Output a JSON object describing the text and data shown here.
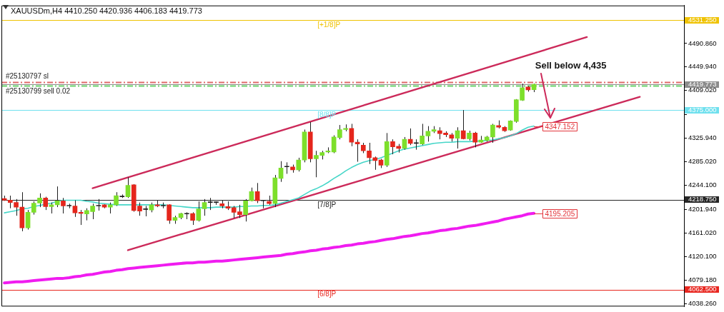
{
  "chart_data": {
    "type": "candlestick",
    "title": "XAUUSDm,H4 4410.250 4420.936 4406.183 4419.773",
    "categories": [
      null,
      null,
      null,
      null,
      null,
      null,
      null,
      null,
      null,
      null,
      null,
      null,
      null,
      null,
      null,
      null,
      null,
      null,
      null,
      null,
      null,
      null,
      null,
      null,
      null,
      null,
      null,
      null,
      null,
      null,
      null,
      null,
      null,
      null,
      null,
      null,
      null,
      null,
      null,
      null,
      null,
      null,
      null,
      null,
      null,
      null,
      null,
      null,
      null,
      null,
      null,
      null,
      null,
      null,
      null,
      null,
      null,
      null,
      null,
      null,
      null,
      null,
      null,
      null,
      null,
      null,
      null,
      null,
      null,
      null,
      null,
      null,
      null,
      null,
      null,
      null,
      null,
      null,
      null,
      null,
      null,
      null,
      null,
      null,
      null,
      null,
      null,
      null,
      null,
      null,
      null,
      null,
      null,
      null,
      null,
      null,
      null,
      null,
      null,
      null,
      null,
      null,
      null,
      null,
      null,
      null,
      null,
      null,
      null,
      null,
      null,
      null,
      null,
      null,
      null,
      null
    ],
    "ohlc": [
      [
        4221,
        4226,
        4217,
        4218
      ],
      [
        4218,
        4226,
        4204,
        4214
      ],
      [
        4214,
        4220,
        4191,
        4206
      ],
      [
        4206,
        4232,
        4164,
        4170
      ],
      [
        4170,
        4201,
        4167,
        4197
      ],
      [
        4197,
        4216,
        4193,
        4213
      ],
      [
        4213,
        4230,
        4206,
        4222
      ],
      [
        4222,
        4224,
        4201,
        4207
      ],
      [
        4207,
        4214,
        4195,
        4210
      ],
      [
        4210,
        4242,
        4206,
        4217
      ],
      [
        4217,
        4222,
        4195,
        4208
      ],
      [
        4208,
        4212,
        4204,
        4208
      ],
      [
        4208,
        4218,
        4189,
        4196
      ],
      [
        4197,
        4201,
        4175,
        4195
      ],
      [
        4194,
        4204,
        4183,
        4200
      ],
      [
        4198,
        4212,
        4185,
        4208
      ],
      [
        4208,
        4220,
        4200,
        4208
      ],
      [
        4210,
        4211,
        4204,
        4206
      ],
      [
        4206,
        4214,
        4195,
        4210
      ],
      [
        4210,
        4232,
        4208,
        4226
      ],
      [
        4224,
        4228,
        4222,
        4224
      ],
      [
        4224,
        4258,
        4222,
        4244
      ],
      [
        4245,
        4246,
        4198,
        4200
      ],
      [
        4208,
        4214,
        4191,
        4199
      ],
      [
        4202,
        4208,
        4190,
        4202
      ],
      [
        4201,
        4214,
        4197,
        4210
      ],
      [
        4210,
        4218,
        4206,
        4208
      ],
      [
        4208,
        4214,
        4204,
        4208
      ],
      [
        4210,
        4211,
        4177,
        4183
      ],
      [
        4183,
        4191,
        4177,
        4188
      ],
      [
        4188,
        4196,
        4185,
        4195
      ],
      [
        4194,
        4197,
        4185,
        4194
      ],
      [
        4195,
        4197,
        4175,
        4183
      ],
      [
        4183,
        4216,
        4181,
        4203
      ],
      [
        4203,
        4220,
        4191,
        4214
      ],
      [
        4214,
        4222,
        4201,
        4214
      ],
      [
        4214,
        4216,
        4210,
        4214
      ],
      [
        4212,
        4218,
        4204,
        4208
      ],
      [
        4207,
        4216,
        4201,
        4204
      ],
      [
        4205,
        4208,
        4187,
        4197
      ],
      [
        4198,
        4210,
        4187,
        4193
      ],
      [
        4193,
        4220,
        4181,
        4217
      ],
      [
        4217,
        4240,
        4216,
        4233
      ],
      [
        4233,
        4248,
        4213,
        4217
      ],
      [
        4217,
        4218,
        4204,
        4217
      ],
      [
        4216,
        4226,
        4210,
        4212
      ],
      [
        4212,
        4262,
        4206,
        4257
      ],
      [
        4256,
        4286,
        4250,
        4274
      ],
      [
        4276,
        4284,
        4264,
        4276
      ],
      [
        4276,
        4280,
        4266,
        4271
      ],
      [
        4271,
        4292,
        4268,
        4288
      ],
      [
        4288,
        4341,
        4284,
        4337
      ],
      [
        4337,
        4354,
        4284,
        4290
      ],
      [
        4290,
        4304,
        4258,
        4296
      ],
      [
        4296,
        4304,
        4289,
        4301
      ],
      [
        4302,
        4310,
        4300,
        4304
      ],
      [
        4302,
        4331,
        4300,
        4328
      ],
      [
        4327,
        4349,
        4324,
        4341
      ],
      [
        4341,
        4350,
        4338,
        4343
      ],
      [
        4343,
        4351,
        4312,
        4319
      ],
      [
        4319,
        4324,
        4285,
        4316
      ],
      [
        4314,
        4318,
        4300,
        4304
      ],
      [
        4304,
        4318,
        4281,
        4292
      ],
      [
        4292,
        4294,
        4271,
        4287
      ],
      [
        4288,
        4290,
        4274,
        4279
      ],
      [
        4279,
        4335,
        4276,
        4320
      ],
      [
        4320,
        4324,
        4298,
        4311
      ],
      [
        4312,
        4316,
        4301,
        4308
      ],
      [
        4308,
        4328,
        4306,
        4324
      ],
      [
        4324,
        4343,
        4314,
        4317
      ],
      [
        4317,
        4324,
        4306,
        4317
      ],
      [
        4316,
        4351,
        4314,
        4330
      ],
      [
        4330,
        4347,
        4320,
        4338
      ],
      [
        4338,
        4347,
        4335,
        4341
      ],
      [
        4339,
        4345,
        4324,
        4334
      ],
      [
        4335,
        4338,
        4328,
        4332
      ],
      [
        4332,
        4335,
        4320,
        4326
      ],
      [
        4326,
        4345,
        4308,
        4339
      ],
      [
        4339,
        4375,
        4324,
        4325
      ],
      [
        4325,
        4339,
        4322,
        4335
      ],
      [
        4335,
        4337,
        4310,
        4319
      ],
      [
        4319,
        4330,
        4318,
        4323
      ],
      [
        4322,
        4330,
        4320,
        4328
      ],
      [
        4328,
        4351,
        4318,
        4349
      ],
      [
        4348,
        4357,
        4343,
        4345
      ],
      [
        4345,
        4347,
        4337,
        4339
      ],
      [
        4340,
        4357,
        4339,
        4356
      ],
      [
        4355,
        4394,
        4353,
        4393
      ],
      [
        4392,
        4421,
        4391,
        4414
      ],
      [
        4415,
        4417,
        4407,
        4410
      ],
      [
        4410.25,
        4420.936,
        4406.183,
        4419.773
      ],
      null,
      null,
      null,
      null,
      null,
      null,
      null,
      null,
      null,
      null,
      null,
      null,
      null,
      null,
      null,
      null,
      null,
      null,
      null,
      null,
      null,
      null,
      null,
      null,
      null
    ],
    "colors": [
      "#e5261c",
      "#e5261c",
      "#e5261c",
      "#e5261c",
      "#7ddf2b",
      "#7ddf2b",
      "#7ddf2b",
      "#e5261c",
      "#7ddf2b",
      "#7ddf2b",
      "#e5261c",
      "#1f1f1f",
      "#e5261c",
      "#e5261c",
      "#7ddf2b",
      "#7ddf2b",
      "#1f1f1f",
      "#e5261c",
      "#7ddf2b",
      "#7ddf2b",
      "#1f1f1f",
      "#7ddf2b",
      "#e5261c",
      "#e5261c",
      "#1f1f1f",
      "#7ddf2b",
      "#e5261c",
      "#1f1f1f",
      "#e5261c",
      "#7ddf2b",
      "#7ddf2b",
      "#1f1f1f",
      "#e5261c",
      "#7ddf2b",
      "#7ddf2b",
      "#1f1f1f",
      "#1f1f1f",
      "#e5261c",
      "#e5261c",
      "#e5261c",
      "#e5261c",
      "#7ddf2b",
      "#7ddf2b",
      "#e5261c",
      "#1f1f1f",
      "#e5261c",
      "#7ddf2b",
      "#7ddf2b",
      "#1f1f1f",
      "#e5261c",
      "#7ddf2b",
      "#7ddf2b",
      "#e5261c",
      "#7ddf2b",
      "#7ddf2b",
      "#7ddf2b",
      "#7ddf2b",
      "#7ddf2b",
      "#7ddf2b",
      "#e5261c",
      "#e5261c",
      "#e5261c",
      "#e5261c",
      "#e5261c",
      "#e5261c",
      "#7ddf2b",
      "#e5261c",
      "#e5261c",
      "#7ddf2b",
      "#e5261c",
      "#1f1f1f",
      "#7ddf2b",
      "#7ddf2b",
      "#7ddf2b",
      "#e5261c",
      "#e5261c",
      "#e5261c",
      "#7ddf2b",
      "#e5261c",
      "#7ddf2b",
      "#e5261c",
      "#7ddf2b",
      "#7ddf2b",
      "#7ddf2b",
      "#e5261c",
      "#e5261c",
      "#7ddf2b",
      "#7ddf2b",
      "#7ddf2b",
      "#e5261c",
      "#7ddf2b",
      null,
      null,
      null,
      null,
      null,
      null,
      null,
      null,
      null,
      null,
      null,
      null,
      null,
      null,
      null,
      null,
      null,
      null,
      null,
      null,
      null,
      null,
      null,
      null,
      null
    ],
    "ylim": [
      4033,
      4557
    ],
    "yticks": [
      {
        "value": 4531.25,
        "label": "4531.250"
      },
      {
        "value": 4490.86,
        "label": "4490.860"
      },
      {
        "value": 4449.94,
        "label": "4449.940"
      },
      {
        "value": 4419.773,
        "label": "4419.773"
      },
      {
        "value": 4409.02,
        "label": "4409.020"
      },
      {
        "value": 4375,
        "label": "4375.000"
      },
      {
        "value": 4366.86,
        "label": null
      },
      {
        "value": 4325.94,
        "label": "4325.940"
      },
      {
        "value": 4285.02,
        "label": "4285.020"
      },
      {
        "value": 4244.1,
        "label": "4244.100"
      },
      {
        "value": 4218.75,
        "label": "4218.750"
      },
      {
        "value": 4201.94,
        "label": "4201.940"
      },
      {
        "value": 4161.02,
        "label": "4161.020"
      },
      {
        "value": 4120.1,
        "label": "4120.100"
      },
      {
        "value": 4079.18,
        "label": "4079.180"
      },
      {
        "value": 4062.5,
        "label": "4062.500"
      },
      {
        "value": 4038.26,
        "label": "4038.260"
      }
    ],
    "tick_labels": "y",
    "series": [
      {
        "type": "line",
        "color": "#45d6c8",
        "values": [
          4196,
          4198,
          4200,
          4203,
          4204,
          4207,
          4209,
          4211,
          4213,
          4216,
          4218,
          4218,
          4218,
          4218,
          4216,
          4215,
          4213,
          4212,
          4211,
          4210,
          4210,
          4210,
          4210,
          4210,
          4210,
          4210,
          4210,
          4210,
          4209,
          4208,
          4207,
          4206,
          4205,
          4205,
          4205,
          4205,
          4206,
          4206,
          4206,
          4206,
          4207,
          4207,
          4208,
          4208,
          4209,
          4209,
          4210,
          4213,
          4216,
          4219,
          4222,
          4228,
          4234,
          4238,
          4243,
          4249,
          4256,
          4262,
          4269,
          4275,
          4280,
          4284,
          4287,
          4289,
          4292,
          4296,
          4300,
          4304,
          4307,
          4309,
          4311,
          4313,
          4315,
          4317,
          4318,
          4319,
          4319,
          4320,
          4320,
          4320,
          4321,
          4321,
          4322,
          4323,
          4325,
          4327,
          4330,
          4334,
          4340,
          4345,
          4347.152,
          null,
          null,
          null,
          null,
          null,
          null,
          null,
          null,
          null,
          null,
          null,
          null,
          null,
          null,
          null,
          null,
          null,
          null,
          null,
          null,
          null,
          null,
          null,
          null,
          null
        ],
        "value_labels": [
          null,
          null,
          null,
          null,
          null,
          null,
          null,
          null,
          null,
          null,
          null,
          null,
          null,
          null,
          null,
          null,
          null,
          null,
          null,
          null,
          null,
          null,
          null,
          null,
          null,
          null,
          null,
          null,
          null,
          null,
          null,
          null,
          null,
          null,
          null,
          null,
          null,
          null,
          null,
          null,
          null,
          null,
          null,
          null,
          null,
          null,
          null,
          null,
          null,
          null,
          null,
          null,
          null,
          null,
          null,
          null,
          null,
          null,
          null,
          null,
          null,
          null,
          null,
          null,
          null,
          null,
          null,
          null,
          null,
          null,
          null,
          null,
          null,
          null,
          null,
          null,
          null,
          null,
          null,
          null,
          null,
          null,
          null,
          null,
          null,
          null,
          null,
          null,
          null,
          null,
          "4347.152",
          null,
          null,
          null,
          null,
          null,
          null,
          null,
          null,
          null,
          null,
          null,
          null,
          null,
          null,
          null,
          null,
          null,
          null,
          null,
          null,
          null,
          null,
          null,
          null,
          null
        ]
      },
      {
        "type": "line",
        "color": "#f01cf0",
        "values": [
          4074,
          4075,
          4076,
          4076,
          4077,
          4078,
          4079,
          4080,
          4081,
          4082,
          4082,
          4083,
          4085,
          4086,
          4088,
          4089,
          4091,
          4093,
          4094,
          4096,
          4097,
          4099,
          4100,
          4101,
          4102,
          4103,
          4104,
          4105,
          4106,
          4107,
          4108,
          4109,
          4109,
          4110,
          4110,
          4111,
          4112,
          4112,
          4113,
          4114,
          4115,
          4116,
          4117,
          4118,
          4119,
          4120,
          4121,
          4122,
          4124,
          4125,
          4127,
          4128,
          4130,
          4131,
          4133,
          4134,
          4136,
          4137,
          4139,
          4140,
          4142,
          4143,
          4145,
          4146,
          4148,
          4150,
          4151,
          4153,
          4155,
          4156,
          4158,
          4160,
          4161,
          4163,
          4165,
          4166,
          4168,
          4169,
          4171,
          4173,
          4174,
          4176,
          4178,
          4180,
          4182,
          4185,
          4187,
          4189,
          4191,
          4194,
          4195.205,
          null,
          null,
          null,
          null,
          null,
          null,
          null,
          null,
          null,
          null,
          null,
          null,
          null,
          null,
          null,
          null,
          null,
          null,
          null,
          null,
          null,
          null,
          null,
          null,
          null
        ],
        "value_labels": [
          null,
          null,
          null,
          null,
          null,
          null,
          null,
          null,
          null,
          null,
          null,
          null,
          null,
          null,
          null,
          null,
          null,
          null,
          null,
          null,
          null,
          null,
          null,
          null,
          null,
          null,
          null,
          null,
          null,
          null,
          null,
          null,
          null,
          null,
          null,
          null,
          null,
          null,
          null,
          null,
          null,
          null,
          null,
          null,
          null,
          null,
          null,
          null,
          null,
          null,
          null,
          null,
          null,
          null,
          null,
          null,
          null,
          null,
          null,
          null,
          null,
          null,
          null,
          null,
          null,
          null,
          null,
          null,
          null,
          null,
          null,
          null,
          null,
          null,
          null,
          null,
          null,
          null,
          null,
          null,
          null,
          null,
          null,
          null,
          null,
          null,
          null,
          null,
          null,
          null,
          "4195.205",
          null,
          null,
          null,
          null,
          null,
          null,
          null,
          null,
          null,
          null,
          null,
          null,
          null,
          null,
          null,
          null,
          null,
          null,
          null,
          null,
          null,
          null,
          null,
          null,
          null
        ]
      },
      {
        "type": "line",
        "color": "#cc2a5a",
        "values": [
          null,
          null,
          null,
          null,
          null,
          null,
          null,
          null,
          null,
          null,
          null,
          null,
          null,
          null,
          null,
          4239,
          null,
          null,
          null,
          null,
          null,
          null,
          null,
          null,
          null,
          null,
          null,
          null,
          null,
          null,
          null,
          null,
          null,
          null,
          null,
          null,
          null,
          null,
          null,
          null,
          null,
          null,
          null,
          null,
          null,
          null,
          null,
          null,
          null,
          null,
          null,
          null,
          null,
          null,
          null,
          null,
          null,
          null,
          null,
          null,
          null,
          null,
          null,
          null,
          null,
          null,
          null,
          null,
          null,
          null,
          null,
          null,
          null,
          null,
          null,
          null,
          null,
          null,
          null,
          null,
          null,
          null,
          null,
          null,
          null,
          null,
          null,
          null,
          null,
          null,
          null,
          null,
          null,
          null,
          null,
          null,
          null,
          null,
          null,
          4502,
          null,
          null,
          null,
          null,
          null,
          null,
          null,
          null,
          null,
          null,
          null,
          null,
          null,
          null,
          null,
          null
        ]
      },
      {
        "type": "line",
        "color": "#cc2a5a",
        "values": [
          null,
          null,
          null,
          null,
          null,
          null,
          null,
          null,
          null,
          null,
          null,
          null,
          null,
          null,
          null,
          null,
          null,
          null,
          null,
          null,
          null,
          4131,
          null,
          null,
          null,
          null,
          null,
          null,
          null,
          null,
          null,
          null,
          null,
          null,
          null,
          null,
          null,
          null,
          null,
          null,
          null,
          null,
          null,
          null,
          null,
          null,
          null,
          null,
          null,
          null,
          null,
          null,
          null,
          null,
          null,
          null,
          null,
          null,
          null,
          null,
          null,
          null,
          null,
          null,
          null,
          null,
          null,
          null,
          null,
          null,
          null,
          null,
          null,
          null,
          null,
          null,
          null,
          null,
          null,
          null,
          null,
          null,
          null,
          null,
          null,
          null,
          null,
          null,
          null,
          null,
          null,
          null,
          null,
          null,
          null,
          null,
          null,
          null,
          null,
          null,
          null,
          null,
          null,
          null,
          null,
          null,
          null,
          null,
          4398,
          null,
          null,
          null,
          null,
          null,
          null,
          null
        ]
      }
    ],
    "ref_lines": [
      {
        "axis": "y",
        "value": 4531.25,
        "label": "[+1/8]P",
        "color": "#efc200"
      },
      {
        "axis": "y",
        "value": 4375,
        "label": "[8/8]P",
        "color": "#6fe0ee"
      },
      {
        "axis": "y",
        "value": 4218.75,
        "label": "[7/8]P",
        "color": "#262626"
      },
      {
        "axis": "y",
        "value": 4062.5,
        "label": "[6/8]P",
        "color": "#e8261f"
      },
      {
        "axis": "y",
        "value": 4419.773,
        "color": "#8c8c8c"
      },
      {
        "axis": "y",
        "value": 4424,
        "label": "#25130797 sl",
        "color": "#e06a6a",
        "line_style": "dashed"
      },
      {
        "axis": "y",
        "value": 4417,
        "label": "#25130799 sell 0.02",
        "color": "#6cd36c",
        "line_style": "dashed"
      }
    ],
    "annotations": [
      "Sell below 4,435"
    ]
  }
}
